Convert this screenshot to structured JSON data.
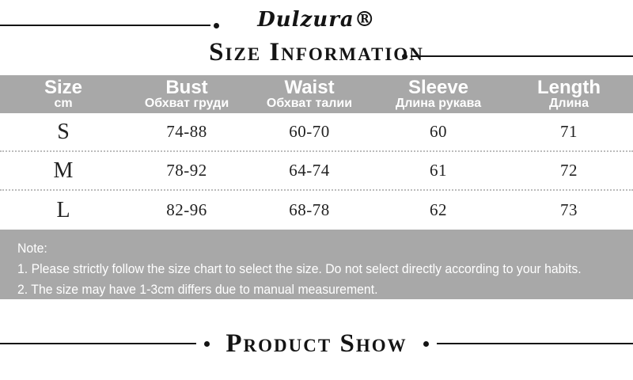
{
  "brand": "Dulzura®",
  "titles": {
    "size_information": "Size Information",
    "product_show": "Product Show"
  },
  "table": {
    "headers": [
      {
        "label": "Size",
        "sub": "cm"
      },
      {
        "label": "Bust",
        "sub": "Обхват груди"
      },
      {
        "label": "Waist",
        "sub": "Обхват талии"
      },
      {
        "label": "Sleeve",
        "sub": "Длина рукава"
      },
      {
        "label": "Length",
        "sub": "Длина"
      }
    ],
    "rows": [
      [
        "S",
        "74-88",
        "60-70",
        "60",
        "71"
      ],
      [
        "M",
        "78-92",
        "64-74",
        "61",
        "72"
      ],
      [
        "L",
        "82-96",
        "68-78",
        "62",
        "73"
      ]
    ]
  },
  "note": {
    "title": "Note:",
    "line1": "1. Please strictly follow the size chart to select the size. Do not select directly according to your habits.",
    "line2": "2. The size may have 1-3cm differs due to manual measurement."
  },
  "colors": {
    "table_header_bg": "#a8a8a8",
    "note_bg": "#a8a8a8",
    "text_white": "#ffffff",
    "text_black": "#141414",
    "dotted_separator": "#bcbcbc"
  }
}
